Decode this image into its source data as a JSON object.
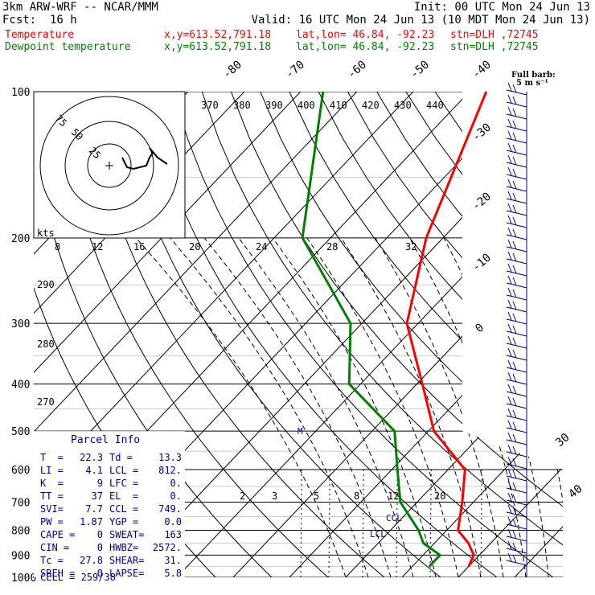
{
  "header": {
    "model": "3km ARW-WRF -- NCAR/MMM",
    "init": "Init: 00 UTC Mon 24 Jun 13",
    "fcst_label": "Fcst:",
    "fcst_value": "16 h",
    "valid": "Valid: 16 UTC Mon 24 Jun 13 (10 MDT Mon 24 Jun 13)",
    "temp_label": "Temperature",
    "dew_label": "Dewpoint temperature",
    "xy": "x,y=613.52,791.18",
    "latlon": "lat,lon= 46.84, -92.23",
    "stn": "stn=DLH ,72745"
  },
  "colors": {
    "temperature": "#ff0000",
    "dewpoint": "#008000",
    "info": "#00008b",
    "grid": "#000000",
    "barbs": "#00008b"
  },
  "chart_data": {
    "type": "line",
    "title": "",
    "xlabel": "",
    "ylabel": "",
    "pressure_ticks": [
      100,
      200,
      300,
      400,
      500,
      600,
      700,
      800,
      900,
      1000
    ],
    "temp_ticks": [
      -80,
      -70,
      -60,
      -50,
      -40,
      -30,
      -20,
      -10,
      0,
      30,
      40
    ],
    "theta_labels": [
      370,
      380,
      390,
      400,
      410,
      420,
      430,
      440
    ],
    "mixing_top": [
      8,
      12,
      16,
      20,
      24,
      28,
      32
    ],
    "mixing_bottom": [
      2,
      3,
      5,
      8,
      12,
      20
    ],
    "theta_left": [
      290,
      280,
      270
    ],
    "series": [
      {
        "name": "Temperature",
        "points": [
          [
            100,
            -57
          ],
          [
            200,
            -43
          ],
          [
            300,
            -32
          ],
          [
            400,
            -19
          ],
          [
            500,
            -9
          ],
          [
            600,
            3
          ],
          [
            700,
            8
          ],
          [
            800,
            12
          ],
          [
            850,
            16
          ],
          [
            900,
            19
          ],
          [
            950,
            20
          ]
        ]
      },
      {
        "name": "Dewpoint temperature",
        "points": [
          [
            100,
            -86
          ],
          [
            200,
            -65
          ],
          [
            300,
            -42
          ],
          [
            400,
            -32
          ],
          [
            500,
            -16
          ],
          [
            600,
            -9
          ],
          [
            700,
            -3
          ],
          [
            800,
            5
          ],
          [
            850,
            8
          ],
          [
            900,
            13
          ],
          [
            950,
            13
          ]
        ]
      }
    ],
    "hodograph": {
      "units_label": "kts",
      "ring_labels": [
        "75",
        "50",
        "25"
      ],
      "points": [
        [
          0,
          0
        ],
        [
          8,
          2
        ],
        [
          14,
          3
        ],
        [
          18,
          6
        ],
        [
          22,
          10
        ],
        [
          26,
          14
        ],
        [
          30,
          18
        ]
      ]
    },
    "wind_barb_label": "Full barb:",
    "wind_barb_unit": "5 m s⁻¹",
    "annotations": {
      "lcl1": "CCL",
      "lcl2": "LCL",
      "m": "M"
    }
  },
  "parcel_info": {
    "title": "Parcel Info",
    "rows": [
      {
        "l1": "T  =",
        "v1": "22.3",
        "l2": "Td =",
        "v2": "13.3"
      },
      {
        "l1": "LI =",
        "v1": "4.1",
        "l2": "LCL =",
        "v2": "812."
      },
      {
        "l1": "K  =",
        "v1": "9",
        "l2": "LFC =",
        "v2": "0."
      },
      {
        "l1": "TT =",
        "v1": "37",
        "l2": "EL  =",
        "v2": "0."
      },
      {
        "l1": "SVI=",
        "v1": "7.7",
        "l2": "CCL =",
        "v2": "749."
      },
      {
        "l1": "PW =",
        "v1": "1.87",
        "l2": "YGP =",
        "v2": "0.0"
      },
      {
        "l1": "CAPE =",
        "v1": "0",
        "l2": "SWEAT=",
        "v2": "163"
      },
      {
        "l1": "CIN =",
        "v1": "0",
        "l2": "HWBZ=",
        "v2": "2572."
      },
      {
        "l1": "Tc =",
        "v1": "27.8",
        "l2": "SHEAR=",
        "v2": "31."
      },
      {
        "l1": "SREH =",
        "v1": "0",
        "l2": "LAPSE=",
        "v2": "5.8"
      }
    ],
    "cell": "CELL = 259/38"
  }
}
